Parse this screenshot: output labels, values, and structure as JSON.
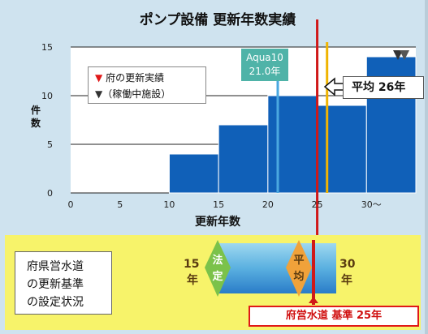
{
  "chart_data": {
    "type": "bar",
    "title": "ポンプ設備 更新年数実績",
    "xlabel": "更新年数",
    "ylabel": "件数",
    "x_tick_labels": [
      "0",
      "5",
      "10",
      "15",
      "20",
      "25",
      "30〜"
    ],
    "y_tick_labels": [
      "0",
      "5",
      "10",
      "15"
    ],
    "xlim": [
      0,
      35
    ],
    "ylim": [
      0,
      15
    ],
    "bins": [
      {
        "from": 10,
        "to": 15,
        "value": 4
      },
      {
        "from": 15,
        "to": 20,
        "value": 7
      },
      {
        "from": 20,
        "to": 25,
        "value": 10
      },
      {
        "from": 25,
        "to": 30,
        "value": 9
      },
      {
        "from": 30,
        "to": 35,
        "value": 14
      }
    ],
    "reference_lines": [
      {
        "x": 21,
        "color": "#4aa8e0"
      },
      {
        "x": 25,
        "color": "#d01818"
      },
      {
        "x": 26,
        "color": "#f0b400"
      }
    ],
    "grid": true,
    "colors": {
      "bar": "#1060b8",
      "bar_edge": "#ffffff",
      "plot_bg": "#ffffff",
      "frame_bg": "#cfe3ef"
    }
  },
  "legend": {
    "items": [
      {
        "symbol": "▼",
        "label": "府の更新実績"
      },
      {
        "symbol": "▼",
        "label": "（稼働中施設）"
      }
    ]
  },
  "annotations": {
    "aqua_line1": "Aqua10",
    "aqua_line2": "21.0年",
    "average": "平均 26年",
    "base": "府営水道 基準 25年"
  },
  "standard_panel": {
    "lines": [
      "府県営水道",
      "の更新基準",
      "の設定状況"
    ],
    "low_num": "15",
    "low_unit": "年",
    "high_num": "30",
    "high_unit": "年",
    "legal": [
      "法",
      "定"
    ],
    "avg": [
      "平",
      "均"
    ]
  }
}
